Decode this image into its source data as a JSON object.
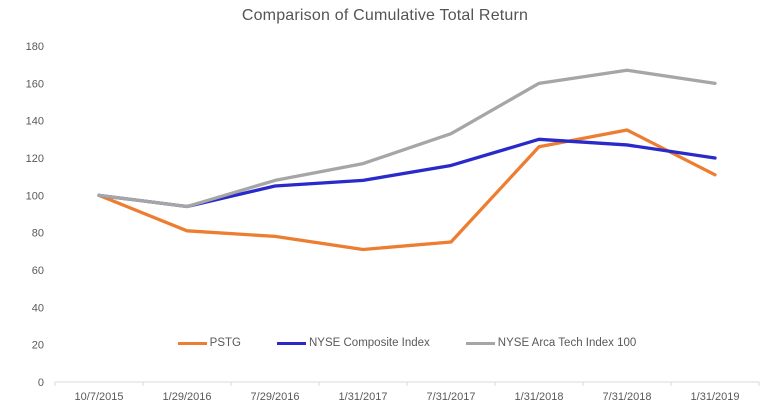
{
  "chart_data": {
    "type": "line",
    "title": "Comparison of Cumulative Total Return",
    "categories": [
      "10/7/2015",
      "1/29/2016",
      "7/29/2016",
      "1/31/2017",
      "7/31/2017",
      "1/31/2018",
      "7/31/2018",
      "1/31/2019"
    ],
    "series": [
      {
        "name": "PSTG",
        "color": "#ED7D31",
        "values": [
          100,
          81,
          78,
          71,
          75,
          126,
          135,
          111
        ]
      },
      {
        "name": "NYSE Composite Index",
        "color": "#2A2ACB",
        "values": [
          100,
          94,
          105,
          108,
          116,
          130,
          127,
          120
        ]
      },
      {
        "name": "NYSE Arca Tech Index 100",
        "color": "#A6A6A6",
        "values": [
          100,
          94,
          108,
          117,
          133,
          160,
          167,
          160
        ]
      }
    ],
    "y_axis": {
      "min": 0,
      "max": 180,
      "step": 20,
      "ticks": [
        0,
        20,
        40,
        60,
        80,
        100,
        120,
        140,
        160,
        180
      ]
    },
    "xlabel": "",
    "ylabel": "",
    "grid": false,
    "legend_position": "bottom-inside",
    "colors": {
      "axis_line": "#D9D9D9",
      "tick_text": "#595959",
      "title_text": "#545454",
      "background": "#FFFFFF"
    }
  }
}
